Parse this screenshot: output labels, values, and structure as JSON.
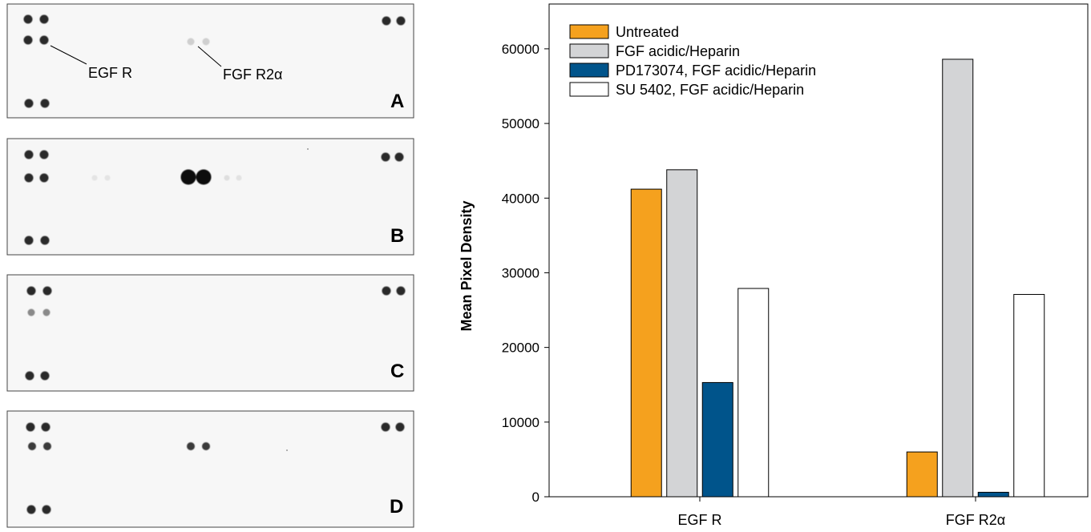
{
  "blots": [
    {
      "letter": "A"
    },
    {
      "letter": "B"
    },
    {
      "letter": "C"
    },
    {
      "letter": "D"
    }
  ],
  "blot_annotations": {
    "egf": "EGF R",
    "fgf": "FGF R2α"
  },
  "chart_data": {
    "type": "bar",
    "categories": [
      "EGF R",
      "FGF R2α"
    ],
    "series": [
      {
        "name": "Untreated",
        "values": [
          41200,
          6000
        ],
        "color": "#f5a11e"
      },
      {
        "name": "FGF acidic/Heparin",
        "values": [
          43800,
          58600
        ],
        "color": "#d3d4d6"
      },
      {
        "name": "PD173074, FGF acidic/Heparin",
        "values": [
          15300,
          600
        ],
        "color": "#00548b"
      },
      {
        "name": "SU 5402, FGF acidic/Heparin",
        "values": [
          27900,
          27100
        ],
        "color": "#ffffff"
      }
    ],
    "ylabel": "Mean Pixel Density",
    "xlabel": "",
    "ylim": [
      0,
      66000
    ],
    "yticks": [
      0,
      10000,
      20000,
      30000,
      40000,
      50000,
      60000
    ],
    "ytick_labels": [
      "0",
      "10000",
      "20000",
      "30000",
      "40000",
      "50000",
      "60000"
    ],
    "legend_position": "top-left",
    "grid": false
  }
}
